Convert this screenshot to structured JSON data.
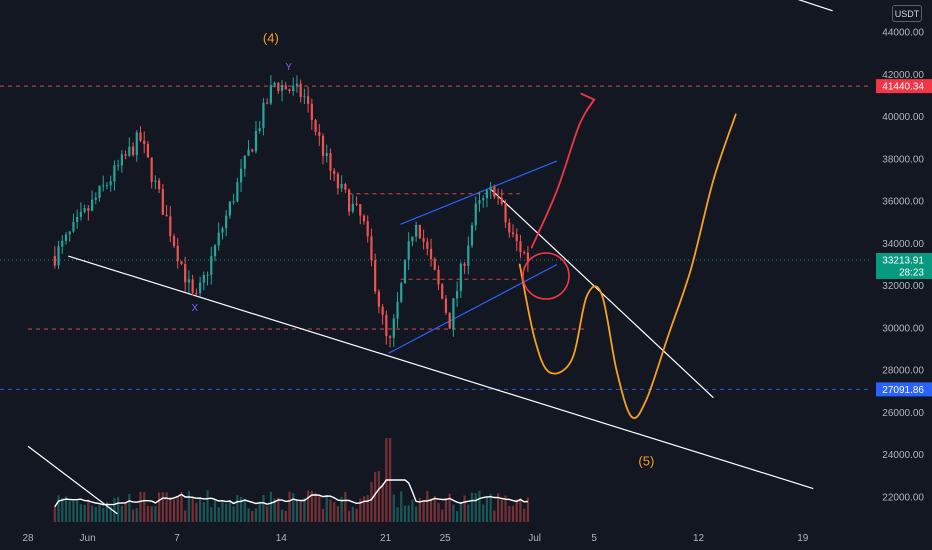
{
  "quote_currency": "USDT",
  "colors": {
    "background": "#131722",
    "up": "#26a69a",
    "down": "#ef5350",
    "resistance_line": "#ef5350",
    "support_line": "#2962ff",
    "channel": "#2962ff",
    "trend": "#ffffff",
    "projection_orange": "#f7a021",
    "projection_red": "#f23645",
    "volume_ma": "#ffffff"
  },
  "chart_data": {
    "type": "candlestick",
    "title": "",
    "y_axis": {
      "min": 20000,
      "max": 46000,
      "ticks": [
        22000,
        24000,
        26000,
        28000,
        30000,
        32000,
        34000,
        36000,
        38000,
        40000,
        42000,
        44000
      ],
      "tick_labels": [
        "22000.00",
        "24000.00",
        "26000.00",
        "28000.00",
        "30000.00",
        "32000.00",
        "34000.00",
        "36000.00",
        "38000.00",
        "40000.00",
        "42000.00",
        "44000.00"
      ]
    },
    "x_axis": {
      "tick_labels": [
        "28",
        "Jun",
        "7",
        "14",
        "21",
        "25",
        "Jul",
        "5",
        "12",
        "19"
      ],
      "tick_days": [
        0,
        4,
        10,
        17,
        24,
        28,
        34,
        38,
        45,
        52
      ]
    },
    "price_labels": {
      "resistance": {
        "value": 41440.34,
        "label": "41440.34"
      },
      "current": {
        "value": 33213.91,
        "label": "33213.91",
        "countdown": "28:23"
      },
      "support": {
        "value": 27091.86,
        "label": "27091.86"
      }
    },
    "key_points": [
      {
        "day": 1.8,
        "price": 33400
      },
      {
        "day": 7.5,
        "price": 39000
      },
      {
        "day": 11.2,
        "price": 31100
      },
      {
        "day": 16.5,
        "price": 41600
      },
      {
        "day": 18.5,
        "price": 41000
      },
      {
        "day": 20.5,
        "price": 37000
      },
      {
        "day": 22.5,
        "price": 35000
      },
      {
        "day": 24.2,
        "price": 28900
      },
      {
        "day": 26,
        "price": 35300
      },
      {
        "day": 28.3,
        "price": 30300
      },
      {
        "day": 30,
        "price": 35500
      },
      {
        "day": 31.3,
        "price": 36600
      },
      {
        "day": 32.3,
        "price": 34500
      },
      {
        "day": 33.6,
        "price": 33200
      }
    ],
    "annotations": [
      {
        "text": "(4)",
        "day": 16.3,
        "price": 43500
      },
      {
        "text": "(5)",
        "day": 41.5,
        "price": 23500
      }
    ],
    "markers": [
      {
        "text": "X",
        "day": 11.2,
        "price": 30800
      },
      {
        "text": "Y",
        "day": 17.5,
        "price": 42200
      }
    ],
    "horizontal_lines": [
      {
        "price": 41440.34,
        "style": "dashed",
        "color": "#ef5350"
      },
      {
        "price": 27091.86,
        "style": "dashed",
        "color": "#2962ff"
      },
      {
        "price": 29950,
        "style": "dashed",
        "color": "#ef5350",
        "from_day": 0,
        "to_day": 37.5
      },
      {
        "price": 36350,
        "style": "dashed",
        "color": "#ef5350",
        "from_day": 21.5,
        "to_day": 33
      },
      {
        "price": 32300,
        "style": "dashed",
        "color": "#ef5350",
        "from_day": 25,
        "to_day": 33
      },
      {
        "price": 33213.91,
        "style": "dotted",
        "color": "#26a69a"
      }
    ],
    "trend_lines": [
      {
        "name": "falling-wedge-lower",
        "from": {
          "day": 2.7,
          "price": 33400
        },
        "to": {
          "day": 52.7,
          "price": 22400
        },
        "color": "#ffffff"
      },
      {
        "name": "falling-wedge-upper",
        "from": {
          "day": 31,
          "price": 36600
        },
        "to": {
          "day": 46,
          "price": 26700
        },
        "color": "#ffffff"
      },
      {
        "name": "channel-upper",
        "from": {
          "day": 25,
          "price": 34900
        },
        "to": {
          "day": 35.5,
          "price": 37900
        },
        "color": "#2962ff"
      },
      {
        "name": "channel-lower",
        "from": {
          "day": 24.2,
          "price": 28800
        },
        "to": {
          "day": 35.5,
          "price": 33000
        },
        "color": "#2962ff"
      },
      {
        "name": "top-right-line",
        "from": {
          "day": 48,
          "price": 46400
        },
        "to": {
          "day": 54,
          "price": 45000
        },
        "color": "#ffffff"
      },
      {
        "name": "bottom-left-line",
        "from": {
          "day": 0,
          "price": 24400
        },
        "to": {
          "day": 6,
          "price": 21200
        },
        "color": "#ffffff"
      }
    ],
    "projections": [
      {
        "name": "bearish-path",
        "color": "#f7a021",
        "points": [
          {
            "day": 33,
            "price": 33000
          },
          {
            "day": 34,
            "price": 29500
          },
          {
            "day": 35,
            "price": 27900
          },
          {
            "day": 36.5,
            "price": 28500
          },
          {
            "day": 37.5,
            "price": 31500
          },
          {
            "day": 38.5,
            "price": 31600
          },
          {
            "day": 39.5,
            "price": 28000
          },
          {
            "day": 40.5,
            "price": 25800
          },
          {
            "day": 41.5,
            "price": 26600
          },
          {
            "day": 43,
            "price": 29700
          },
          {
            "day": 44.5,
            "price": 32800
          },
          {
            "day": 46,
            "price": 37000
          },
          {
            "day": 47.5,
            "price": 40100
          }
        ]
      },
      {
        "name": "bullish-path",
        "color": "#f23645",
        "points": [
          {
            "day": 33.8,
            "price": 33800
          },
          {
            "day": 35.5,
            "price": 36500
          },
          {
            "day": 37,
            "price": 39600
          },
          {
            "day": 38,
            "price": 40800
          }
        ]
      }
    ],
    "volume_ma_level": 0.42
  }
}
